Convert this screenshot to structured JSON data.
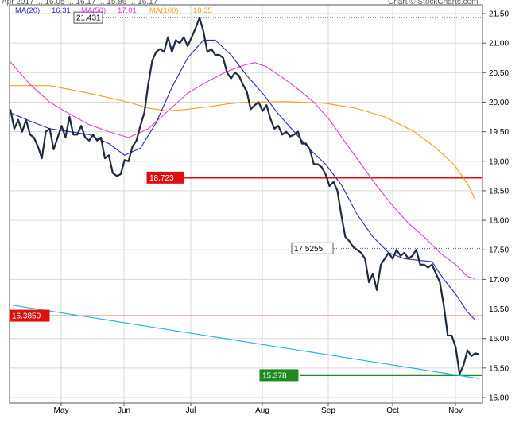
{
  "header": {
    "left_partial": "Apr 2017 ... 16.05 ... 16.17 ... 15.86 ... 16.17",
    "right_partial": "Chart © StockCharts.com"
  },
  "legend": {
    "ma20_label": "MA(20)",
    "ma20_value": "16.31",
    "ma50_label": "MA(50)",
    "ma50_value": "17.01",
    "ma100_label": "MA(100)",
    "ma100_value": "18.35"
  },
  "colors": {
    "price": "#1e2a40",
    "ma20": "#2a2ab8",
    "ma50": "#e040d8",
    "ma100": "#f0a020",
    "red_line": "#dd1010",
    "red_thin": "#d84040",
    "green_line": "#1f8a1f",
    "trend_line": "#20b8d8",
    "grid": "#d8d8d8"
  },
  "chart_data": {
    "type": "line",
    "x_labels": [
      "May",
      "Jun",
      "Jul",
      "Aug",
      "Sep",
      "Oct",
      "Nov"
    ],
    "ylim": [
      15.0,
      21.5
    ],
    "y_ticks": [
      {
        "v": 21.5,
        "label": "21.50"
      },
      {
        "v": 21.0,
        "label": "21.00"
      },
      {
        "v": 20.5,
        "label": "20.50"
      },
      {
        "v": 20.0,
        "label": "20.00"
      },
      {
        "v": 19.5,
        "label": "19.50"
      },
      {
        "v": 19.0,
        "label": "19.00"
      },
      {
        "v": 18.5,
        "label": "18.50"
      },
      {
        "v": 18.0,
        "label": "18.00"
      },
      {
        "v": 17.5,
        "label": "17.50"
      },
      {
        "v": 17.0,
        "label": "17.00"
      },
      {
        "v": 16.5,
        "label": "16.50"
      },
      {
        "v": 16.0,
        "label": "16.00"
      },
      {
        "v": 15.5,
        "label": "15.50"
      },
      {
        "v": 15.0,
        "label": "15.00"
      }
    ],
    "grid": true,
    "series": [
      {
        "name": "Price",
        "values": [
          [
            0,
            19.88
          ],
          [
            2,
            19.55
          ],
          [
            4,
            19.7
          ],
          [
            6,
            19.5
          ],
          [
            8,
            19.7
          ],
          [
            10,
            19.45
          ],
          [
            12,
            19.4
          ],
          [
            14,
            19.25
          ],
          [
            16,
            19.05
          ],
          [
            18,
            19.5
          ],
          [
            20,
            19.55
          ],
          [
            22,
            19.2
          ],
          [
            24,
            19.4
          ],
          [
            26,
            19.6
          ],
          [
            28,
            19.4
          ],
          [
            30,
            19.75
          ],
          [
            32,
            19.45
          ],
          [
            34,
            19.45
          ],
          [
            36,
            19.6
          ],
          [
            38,
            19.4
          ],
          [
            40,
            19.35
          ],
          [
            42,
            19.45
          ],
          [
            44,
            19.35
          ],
          [
            46,
            19.4
          ],
          [
            48,
            19.05
          ],
          [
            50,
            19.1
          ],
          [
            52,
            18.8
          ],
          [
            54,
            18.75
          ],
          [
            56,
            18.78
          ],
          [
            58,
            19.02
          ],
          [
            60,
            19.0
          ],
          [
            62,
            19.25
          ],
          [
            64,
            19.35
          ],
          [
            66,
            19.6
          ],
          [
            68,
            19.82
          ],
          [
            70,
            20.3
          ],
          [
            72,
            20.7
          ],
          [
            74,
            20.85
          ],
          [
            76,
            20.9
          ],
          [
            78,
            20.85
          ],
          [
            80,
            21.1
          ],
          [
            82,
            20.85
          ],
          [
            84,
            21.05
          ],
          [
            86,
            21.0
          ],
          [
            88,
            21.1
          ],
          [
            90,
            20.95
          ],
          [
            92,
            21.1
          ],
          [
            94,
            21.25
          ],
          [
            96,
            21.43
          ],
          [
            98,
            21.2
          ],
          [
            100,
            20.85
          ],
          [
            102,
            20.9
          ],
          [
            104,
            20.8
          ],
          [
            106,
            20.8
          ],
          [
            108,
            20.75
          ],
          [
            110,
            20.5
          ],
          [
            112,
            20.4
          ],
          [
            114,
            20.5
          ],
          [
            116,
            20.45
          ],
          [
            118,
            20.3
          ],
          [
            120,
            20.18
          ],
          [
            122,
            19.88
          ],
          [
            124,
            19.95
          ],
          [
            126,
            20.0
          ],
          [
            128,
            19.85
          ],
          [
            130,
            19.95
          ],
          [
            132,
            19.72
          ],
          [
            134,
            19.55
          ],
          [
            136,
            19.6
          ],
          [
            138,
            19.45
          ],
          [
            140,
            19.5
          ],
          [
            142,
            19.42
          ],
          [
            144,
            19.45
          ],
          [
            146,
            19.5
          ],
          [
            148,
            19.3
          ],
          [
            150,
            19.3
          ],
          [
            152,
            19.2
          ],
          [
            154,
            18.95
          ],
          [
            156,
            18.95
          ],
          [
            158,
            18.9
          ],
          [
            160,
            18.78
          ],
          [
            162,
            18.58
          ],
          [
            164,
            18.65
          ],
          [
            166,
            18.5
          ],
          [
            168,
            18.08
          ],
          [
            170,
            17.72
          ],
          [
            172,
            17.65
          ],
          [
            174,
            17.55
          ],
          [
            176,
            17.5
          ],
          [
            178,
            17.45
          ],
          [
            180,
            17.35
          ],
          [
            182,
            16.95
          ],
          [
            184,
            17.1
          ],
          [
            186,
            16.82
          ],
          [
            188,
            17.25
          ],
          [
            190,
            17.35
          ],
          [
            192,
            17.45
          ],
          [
            194,
            17.35
          ],
          [
            196,
            17.5
          ],
          [
            198,
            17.4
          ],
          [
            200,
            17.45
          ],
          [
            202,
            17.35
          ],
          [
            204,
            17.4
          ],
          [
            206,
            17.5
          ],
          [
            208,
            17.25
          ],
          [
            210,
            17.25
          ],
          [
            212,
            17.2
          ],
          [
            214,
            17.25
          ],
          [
            216,
            17.1
          ],
          [
            218,
            16.95
          ],
          [
            220,
            16.55
          ],
          [
            222,
            16.05
          ],
          [
            224,
            16.05
          ],
          [
            226,
            15.85
          ],
          [
            228,
            15.4
          ],
          [
            230,
            15.55
          ],
          [
            232,
            15.8
          ],
          [
            234,
            15.7
          ],
          [
            236,
            15.75
          ],
          [
            238,
            15.73
          ]
        ]
      },
      {
        "name": "MA(20)",
        "values": [
          [
            0,
            19.82
          ],
          [
            10,
            19.68
          ],
          [
            20,
            19.55
          ],
          [
            30,
            19.5
          ],
          [
            40,
            19.45
          ],
          [
            50,
            19.3
          ],
          [
            58,
            19.1
          ],
          [
            66,
            19.22
          ],
          [
            74,
            19.65
          ],
          [
            82,
            20.25
          ],
          [
            90,
            20.75
          ],
          [
            98,
            21.05
          ],
          [
            104,
            21.05
          ],
          [
            112,
            20.8
          ],
          [
            120,
            20.45
          ],
          [
            128,
            20.15
          ],
          [
            136,
            19.8
          ],
          [
            144,
            19.5
          ],
          [
            152,
            19.2
          ],
          [
            160,
            18.95
          ],
          [
            168,
            18.6
          ],
          [
            176,
            18.1
          ],
          [
            184,
            17.72
          ],
          [
            192,
            17.45
          ],
          [
            200,
            17.35
          ],
          [
            208,
            17.32
          ],
          [
            214,
            17.3
          ],
          [
            220,
            17.0
          ],
          [
            226,
            16.75
          ],
          [
            232,
            16.45
          ],
          [
            236,
            16.31
          ]
        ]
      },
      {
        "name": "MA(50)",
        "values": [
          [
            0,
            20.68
          ],
          [
            10,
            20.3
          ],
          [
            20,
            20.0
          ],
          [
            30,
            19.8
          ],
          [
            40,
            19.62
          ],
          [
            50,
            19.5
          ],
          [
            60,
            19.4
          ],
          [
            70,
            19.55
          ],
          [
            80,
            19.85
          ],
          [
            90,
            20.15
          ],
          [
            100,
            20.35
          ],
          [
            110,
            20.52
          ],
          [
            118,
            20.62
          ],
          [
            124,
            20.67
          ],
          [
            130,
            20.6
          ],
          [
            138,
            20.42
          ],
          [
            146,
            20.22
          ],
          [
            154,
            20.0
          ],
          [
            162,
            19.7
          ],
          [
            170,
            19.32
          ],
          [
            178,
            18.95
          ],
          [
            186,
            18.58
          ],
          [
            194,
            18.25
          ],
          [
            202,
            17.95
          ],
          [
            210,
            17.72
          ],
          [
            218,
            17.45
          ],
          [
            226,
            17.25
          ],
          [
            232,
            17.05
          ],
          [
            236,
            17.01
          ]
        ]
      },
      {
        "name": "MA(100)",
        "values": [
          [
            0,
            20.28
          ],
          [
            20,
            20.28
          ],
          [
            40,
            20.15
          ],
          [
            60,
            20.0
          ],
          [
            70,
            19.9
          ],
          [
            80,
            19.85
          ],
          [
            90,
            19.88
          ],
          [
            100,
            19.92
          ],
          [
            110,
            19.97
          ],
          [
            120,
            20.0
          ],
          [
            140,
            20.01
          ],
          [
            160,
            19.98
          ],
          [
            175,
            19.9
          ],
          [
            190,
            19.75
          ],
          [
            205,
            19.5
          ],
          [
            215,
            19.25
          ],
          [
            225,
            18.95
          ],
          [
            232,
            18.62
          ],
          [
            236,
            18.35
          ]
        ]
      }
    ],
    "annotations": [
      {
        "label": "21.431",
        "value": 21.431
      },
      {
        "label": "18.723",
        "value": 18.723
      },
      {
        "label": "17.5255",
        "value": 17.5255
      },
      {
        "label": "16.3850",
        "value": 16.385
      },
      {
        "label": "15.378",
        "value": 15.378
      }
    ],
    "trend_line": {
      "start": [
        0,
        16.57
      ],
      "end": [
        238,
        15.32
      ]
    }
  }
}
